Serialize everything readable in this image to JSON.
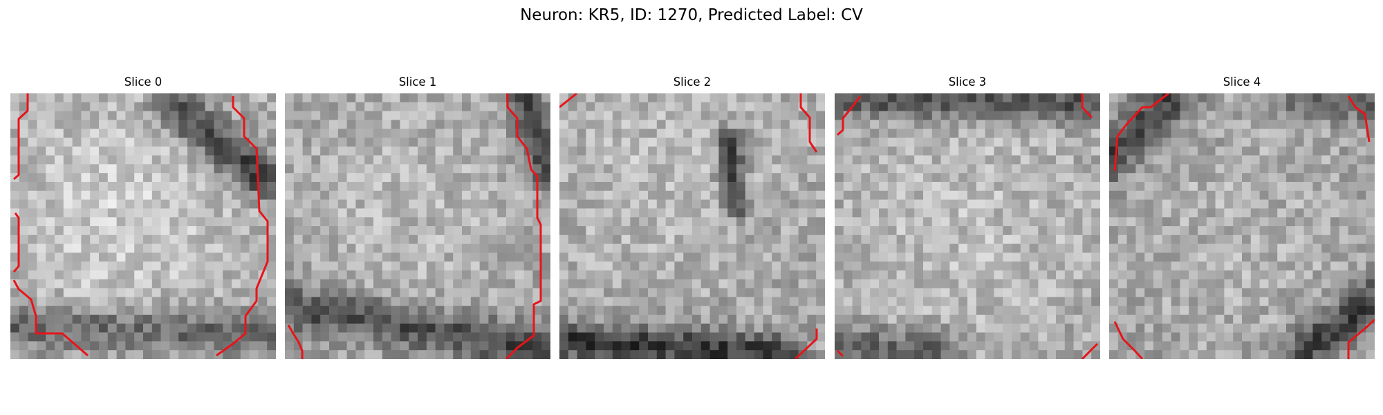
{
  "figure": {
    "title": "Neuron: KR5, ID: 1270, Predicted Label: CV"
  },
  "panels": [
    {
      "title": "Slice 0"
    },
    {
      "title": "Slice 1"
    },
    {
      "title": "Slice 2"
    },
    {
      "title": "Slice 3"
    },
    {
      "title": "Slice 4"
    }
  ],
  "colors": {
    "contour": "#e8141a",
    "background": "#ffffff",
    "colormap": "gray"
  }
}
